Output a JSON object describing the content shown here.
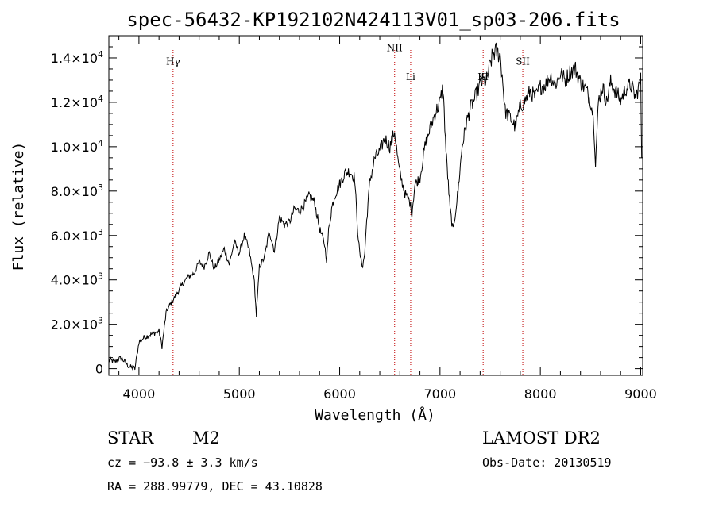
{
  "chart_data": {
    "type": "line",
    "title": "spec-56432-KP192102N424113V01_sp03-206.fits",
    "xlabel": "Wavelength (Å)",
    "ylabel": "Flux (relative)",
    "xlim": [
      3700,
      9020
    ],
    "ylim": [
      -300,
      15000
    ],
    "x_ticks": [
      {
        "value": 4000,
        "label": "4000"
      },
      {
        "value": 5000,
        "label": "5000"
      },
      {
        "value": 6000,
        "label": "6000"
      },
      {
        "value": 7000,
        "label": "7000"
      },
      {
        "value": 8000,
        "label": "8000"
      },
      {
        "value": 9000,
        "label": "9000"
      }
    ],
    "y_ticks": [
      {
        "value": 0,
        "mant": "0",
        "exp": ""
      },
      {
        "value": 2000,
        "mant": "2.0×10",
        "exp": "3"
      },
      {
        "value": 4000,
        "mant": "4.0×10",
        "exp": "3"
      },
      {
        "value": 6000,
        "mant": "6.0×10",
        "exp": "3"
      },
      {
        "value": 8000,
        "mant": "8.0×10",
        "exp": "3"
      },
      {
        "value": 10000,
        "mant": "1.0×10",
        "exp": "4"
      },
      {
        "value": 12000,
        "mant": "1.2×10",
        "exp": "4"
      },
      {
        "value": 14000,
        "mant": "1.4×10",
        "exp": "4"
      }
    ],
    "lines": [
      {
        "name": "Hγ",
        "wavelength": 4340,
        "label_y": 13700
      },
      {
        "name": "NII",
        "wavelength": 6548,
        "label_y": 14300
      },
      {
        "name": "Li",
        "wavelength": 6708,
        "label_y": 13000
      },
      {
        "name": "KI",
        "wavelength": 7430,
        "label_y": 13000
      },
      {
        "name": "SII",
        "wavelength": 7825,
        "label_y": 13700
      }
    ],
    "series": [
      {
        "x": [
          3700,
          3760,
          3820,
          3900,
          3960,
          3980,
          4000,
          4050,
          4100,
          4150,
          4200,
          4230,
          4270,
          4300,
          4340,
          4380,
          4420,
          4480,
          4550,
          4600,
          4650,
          4700,
          4750,
          4800,
          4850,
          4900,
          4950,
          5000,
          5050,
          5100,
          5150,
          5170,
          5200,
          5250,
          5300,
          5350,
          5400,
          5450,
          5500,
          5550,
          5600,
          5650,
          5700,
          5750,
          5800,
          5850,
          5870,
          5890,
          5920,
          5950,
          6000,
          6050,
          6100,
          6150,
          6180,
          6200,
          6230,
          6250,
          6270,
          6300,
          6350,
          6400,
          6450,
          6500,
          6548,
          6580,
          6600,
          6650,
          6700,
          6720,
          6750,
          6800,
          6850,
          6900,
          6950,
          7000,
          7030,
          7060,
          7100,
          7130,
          7150,
          7180,
          7220,
          7260,
          7300,
          7350,
          7400,
          7430,
          7460,
          7500,
          7530,
          7560,
          7600,
          7620,
          7650,
          7700,
          7750,
          7800,
          7850,
          7900,
          7950,
          8000,
          8050,
          8100,
          8150,
          8200,
          8250,
          8300,
          8350,
          8400,
          8450,
          8500,
          8530,
          8550,
          8580,
          8620,
          8660,
          8700,
          8750,
          8800,
          8850,
          8900,
          8950,
          9000,
          9010
        ],
        "y": [
          400,
          300,
          500,
          100,
          0,
          600,
          1200,
          1400,
          1500,
          1600,
          1700,
          1000,
          2500,
          2800,
          3100,
          3400,
          3700,
          4100,
          4300,
          4800,
          4600,
          5200,
          4500,
          4900,
          5400,
          4700,
          5700,
          5200,
          6000,
          5300,
          3900,
          2400,
          4600,
          5000,
          6200,
          5300,
          6800,
          6500,
          6600,
          7200,
          7100,
          7400,
          7800,
          7500,
          6300,
          5600,
          4900,
          6200,
          7200,
          7800,
          8300,
          8800,
          8900,
          8600,
          6200,
          5200,
          4600,
          5200,
          6700,
          8400,
          9500,
          9800,
          10400,
          10000,
          10700,
          9400,
          8800,
          7900,
          7500,
          7000,
          8300,
          8600,
          10000,
          10800,
          11500,
          12000,
          12700,
          9800,
          7200,
          6200,
          6900,
          8000,
          10000,
          11000,
          11700,
          12200,
          12800,
          13000,
          12900,
          13700,
          14200,
          14300,
          14100,
          13200,
          11600,
          11300,
          10900,
          11800,
          12100,
          12500,
          12200,
          12700,
          12800,
          13200,
          12800,
          13300,
          13000,
          13400,
          13500,
          12900,
          12600,
          12100,
          11300,
          9300,
          12100,
          12700,
          12000,
          12900,
          12500,
          12100,
          12600,
          12800,
          12200,
          13000,
          9500
        ]
      }
    ]
  },
  "info": {
    "object_class": "STAR",
    "subclass": "M2",
    "survey": "LAMOST DR2",
    "cz": "cz = −93.8 ± 3.3 km/s",
    "obs_date": "Obs-Date: 20130519",
    "coords": "RA = 288.99779, DEC =  43.10828"
  }
}
